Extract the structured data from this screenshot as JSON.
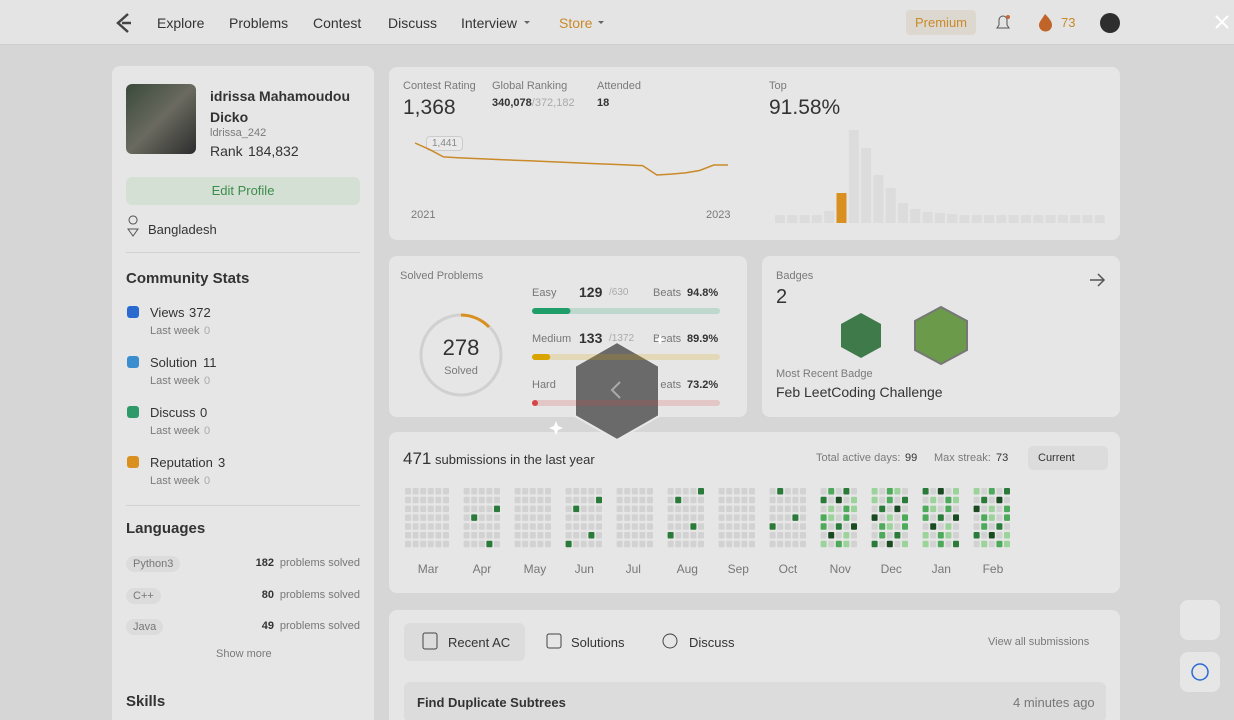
{
  "nav": {
    "items": [
      "Explore",
      "Problems",
      "Contest",
      "Discuss",
      "Interview",
      "Store"
    ],
    "premium": "Premium",
    "streak": "73"
  },
  "profile": {
    "name": "idrissa Mahamoudou Dicko",
    "username": "ldrissa_242",
    "rank_label": "Rank",
    "rank": "184,832",
    "edit": "Edit Profile",
    "location": "Bangladesh"
  },
  "community": {
    "title": "Community Stats",
    "items": [
      {
        "label": "Views",
        "value": "372",
        "sub": "Last week",
        "sub_value": "0"
      },
      {
        "label": "Solution",
        "value": "11",
        "sub": "Last week",
        "sub_value": "0"
      },
      {
        "label": "Discuss",
        "value": "0",
        "sub": "Last week",
        "sub_value": "0"
      },
      {
        "label": "Reputation",
        "value": "3",
        "sub": "Last week",
        "sub_value": "0"
      }
    ]
  },
  "languages": {
    "title": "Languages",
    "items": [
      {
        "name": "Python3",
        "count": "182",
        "text": "problems solved"
      },
      {
        "name": "C++",
        "count": "80",
        "text": "problems solved"
      },
      {
        "name": "Java",
        "count": "49",
        "text": "problems solved"
      }
    ],
    "show_more": "Show more"
  },
  "skills": "Skills",
  "contest": {
    "rating_label": "Contest Rating",
    "rating": "1,368",
    "ranking_label": "Global Ranking",
    "ranking": "340,078",
    "ranking_total": "/372,182",
    "attended_label": "Attended",
    "attended": "18",
    "tooltip": "1,441",
    "start": "2021",
    "end": "2023",
    "top_label": "Top",
    "top": "91.58%",
    "history": [
      1441,
      1420,
      1395,
      1392,
      1390,
      1388,
      1386,
      1384,
      1382,
      1380,
      1378,
      1376,
      1374,
      1372,
      1370,
      1368,
      1366,
      1335,
      1338,
      1342,
      1350,
      1368,
      1368
    ],
    "line_color": "#c98a2a",
    "distribution": [
      8,
      8,
      8,
      8,
      12,
      30,
      93,
      75,
      48,
      35,
      20,
      14,
      11,
      10,
      9,
      8,
      8,
      8,
      8,
      8,
      8,
      8,
      8,
      8,
      8,
      8,
      8
    ],
    "bar_color": "#dcdcdc",
    "highlight": 5,
    "highlight_color": "#d9901f"
  },
  "solved": {
    "title": "Solved Problems",
    "total": "278",
    "total_label": "Solved",
    "beats": "Beats",
    "levels": [
      {
        "name": "Easy",
        "count": 129,
        "of": {
          "value": 630,
          "label": "/630"
        },
        "pct": "94.8%",
        "color": "#1f9e6a"
      },
      {
        "name": "Medium",
        "count": 133,
        "of": {
          "value": 1372,
          "label": "/1372"
        },
        "pct": "89.9%",
        "color": "#d9a300"
      },
      {
        "name": "Hard",
        "pct": "73.2%",
        "color": "#d64545"
      }
    ]
  },
  "badges": {
    "title": "Badges",
    "count": "2",
    "recent_label": "Most Recent Badge",
    "recent": "Feb LeetCoding Challenge"
  },
  "submissions": {
    "count": "471",
    "text": "submissions in the last year",
    "active_label": "Total active days:",
    "active": "99",
    "streak_label": "Max streak:",
    "streak": "73",
    "select": "Current",
    "months": [
      "Mar",
      "Apr",
      "May",
      "Jun",
      "Jul",
      "Aug",
      "Sep",
      "Oct",
      "Nov",
      "Dec",
      "Jan",
      "Feb"
    ]
  },
  "recent": {
    "tabs": [
      "Recent AC",
      "Solutions",
      "Discuss"
    ],
    "view_all": "View all submissions",
    "items": [
      {
        "title": "Find Duplicate Subtrees",
        "time": "4 minutes ago"
      }
    ]
  }
}
